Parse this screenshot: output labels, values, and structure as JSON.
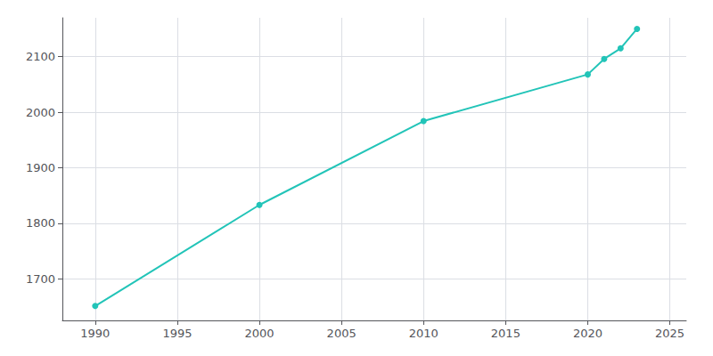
{
  "chart_data": {
    "type": "line",
    "x": [
      1990,
      2000,
      2010,
      2020,
      2021,
      2022,
      2023
    ],
    "values": [
      1651,
      1833,
      1984,
      2068,
      2096,
      2115,
      2150
    ],
    "color": "#22c4b8",
    "marker": "circle",
    "xlim": [
      1988,
      2026
    ],
    "ylim": [
      1625,
      2170
    ],
    "xticks": [
      1990,
      1995,
      2000,
      2005,
      2010,
      2015,
      2020,
      2025
    ],
    "yticks": [
      1700,
      1800,
      1900,
      2000,
      2100
    ],
    "grid": true
  }
}
